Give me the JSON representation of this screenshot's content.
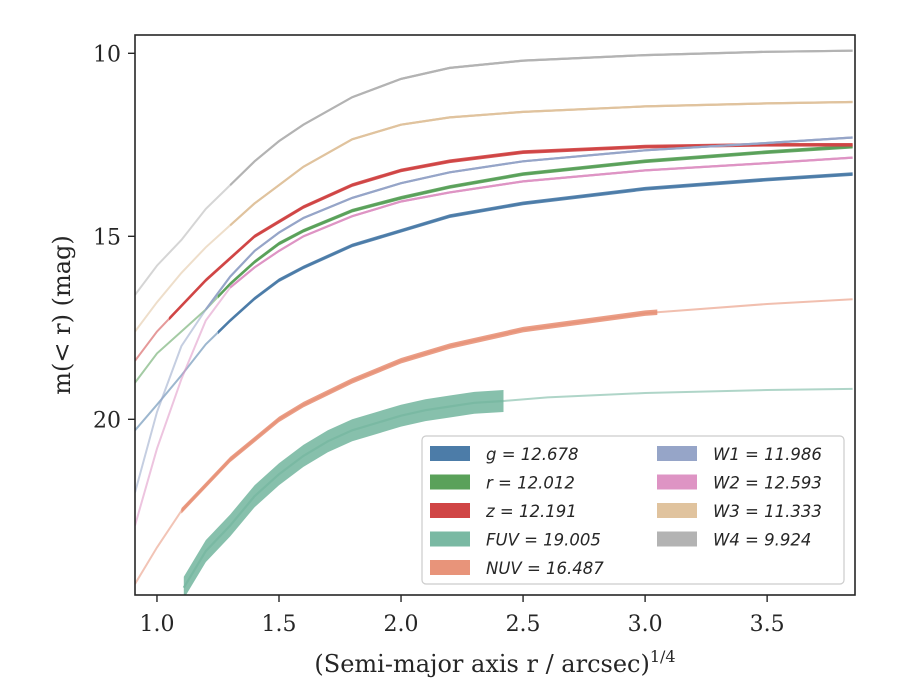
{
  "chart_data": {
    "type": "line",
    "xlabel": "(Semi-major axis r / arcsec)",
    "xlabel_exponent": "1/4",
    "ylabel": "m(< r) (mag)",
    "xlim": [
      0.91,
      3.86
    ],
    "ylim": [
      24.8,
      9.5
    ],
    "y_inverted": true,
    "x_ticks": [
      1.0,
      1.5,
      2.0,
      2.5,
      3.0,
      3.5
    ],
    "x_tick_labels": [
      "1.0",
      "1.5",
      "2.0",
      "2.5",
      "3.0",
      "3.5"
    ],
    "y_ticks": [
      10,
      15,
      20
    ],
    "y_tick_labels": [
      "10",
      "15",
      "20"
    ],
    "legend_position": "lower-right",
    "series": [
      {
        "key": "g",
        "name": "g = 12.678",
        "band": "g",
        "mag": "12.678",
        "color": "#4c7ca8",
        "band_width_mag": 0.1,
        "x": [
          0.91,
          1.0,
          1.1,
          1.2,
          1.3,
          1.4,
          1.5,
          1.6,
          1.8,
          2.0,
          2.2,
          2.5,
          3.0,
          3.5,
          3.85
        ],
        "y": [
          20.3,
          19.6,
          18.8,
          17.95,
          17.3,
          16.7,
          16.2,
          15.85,
          15.25,
          14.85,
          14.45,
          14.1,
          13.7,
          13.45,
          13.3
        ],
        "faint_x_max": 1.25
      },
      {
        "key": "r",
        "name": "r = 12.012",
        "band": "r",
        "mag": "12.012",
        "color": "#5aa15a",
        "band_width_mag": 0.1,
        "x": [
          0.91,
          1.0,
          1.1,
          1.2,
          1.3,
          1.4,
          1.5,
          1.6,
          1.8,
          2.0,
          2.2,
          2.5,
          3.0,
          3.5,
          3.85
        ],
        "y": [
          19.0,
          18.2,
          17.6,
          17.0,
          16.3,
          15.7,
          15.2,
          14.85,
          14.3,
          13.95,
          13.65,
          13.3,
          12.95,
          12.7,
          12.55
        ],
        "faint_x_max": 1.25
      },
      {
        "key": "z",
        "name": "z = 12.191",
        "band": "z",
        "mag": "12.191",
        "color": "#d04545",
        "band_width_mag": 0.1,
        "x": [
          0.91,
          1.0,
          1.1,
          1.2,
          1.3,
          1.4,
          1.5,
          1.6,
          1.8,
          2.0,
          2.2,
          2.5,
          3.0,
          3.5,
          3.85
        ],
        "y": [
          18.4,
          17.6,
          16.9,
          16.2,
          15.6,
          15.0,
          14.6,
          14.2,
          13.6,
          13.2,
          12.95,
          12.7,
          12.55,
          12.5,
          12.5
        ],
        "faint_x_max": 1.05
      },
      {
        "key": "FUV",
        "name": "FUV = 19.005",
        "band": "FUV",
        "mag": "19.005",
        "color": "#7ab9a3",
        "band_width_mag": 0.6,
        "x": [
          1.11,
          1.2,
          1.3,
          1.4,
          1.5,
          1.6,
          1.7,
          1.8,
          1.9,
          2.0,
          2.1,
          2.2,
          2.3,
          2.42,
          2.6,
          3.0,
          3.5,
          3.85
        ],
        "y": [
          24.6,
          23.6,
          22.9,
          22.1,
          21.5,
          21.0,
          20.6,
          20.3,
          20.1,
          19.9,
          19.75,
          19.65,
          19.55,
          19.5,
          19.4,
          19.28,
          19.2,
          19.17
        ],
        "faint_x_max": 0,
        "solid_x_max": 2.42
      },
      {
        "key": "NUV",
        "name": "NUV = 16.487",
        "band": "NUV",
        "mag": "16.487",
        "color": "#e8947a",
        "band_width_mag": 0.15,
        "x": [
          0.91,
          1.0,
          1.1,
          1.2,
          1.3,
          1.4,
          1.5,
          1.6,
          1.8,
          2.0,
          2.2,
          2.5,
          3.0,
          3.5,
          3.85
        ],
        "y": [
          24.5,
          23.5,
          22.5,
          21.8,
          21.1,
          20.55,
          20.0,
          19.6,
          18.95,
          18.4,
          18.0,
          17.55,
          17.1,
          16.85,
          16.72
        ],
        "faint_x_max": 1.1,
        "solid_x_max": 3.05
      },
      {
        "key": "W1",
        "name": "W1 = 11.986",
        "band": "W1",
        "mag": "11.986",
        "color": "#96a5c8",
        "band_width_mag": 0.06,
        "x": [
          0.91,
          1.0,
          1.1,
          1.2,
          1.3,
          1.4,
          1.5,
          1.6,
          1.8,
          2.0,
          2.2,
          2.5,
          3.0,
          3.5,
          3.85
        ],
        "y": [
          22.0,
          19.8,
          18.0,
          17.0,
          16.1,
          15.4,
          14.9,
          14.5,
          13.95,
          13.55,
          13.25,
          12.95,
          12.65,
          12.45,
          12.3
        ],
        "faint_x_max": 1.2
      },
      {
        "key": "W2",
        "name": "W2 = 12.593",
        "band": "W2",
        "mag": "12.593",
        "color": "#de94c4",
        "band_width_mag": 0.06,
        "x": [
          0.91,
          1.0,
          1.1,
          1.2,
          1.3,
          1.4,
          1.5,
          1.6,
          1.8,
          2.0,
          2.2,
          2.5,
          3.0,
          3.5,
          3.85
        ],
        "y": [
          22.9,
          20.8,
          18.9,
          17.3,
          16.4,
          15.85,
          15.4,
          15.0,
          14.45,
          14.05,
          13.8,
          13.5,
          13.2,
          13.0,
          12.85
        ],
        "faint_x_max": 1.3
      },
      {
        "key": "W3",
        "name": "W3 = 11.333",
        "band": "W3",
        "mag": "11.333",
        "color": "#e0c39e",
        "band_width_mag": 0.06,
        "x": [
          0.91,
          1.0,
          1.1,
          1.2,
          1.3,
          1.4,
          1.5,
          1.6,
          1.8,
          2.0,
          2.2,
          2.5,
          3.0,
          3.5,
          3.85
        ],
        "y": [
          17.6,
          16.8,
          16.0,
          15.3,
          14.7,
          14.1,
          13.6,
          13.1,
          12.35,
          11.95,
          11.75,
          11.6,
          11.45,
          11.37,
          11.33
        ],
        "faint_x_max": 1.3
      },
      {
        "key": "W4",
        "name": "W4 = 9.924",
        "band": "W4",
        "mag": "9.924",
        "color": "#b3b3b3",
        "band_width_mag": 0.06,
        "x": [
          0.91,
          1.0,
          1.1,
          1.2,
          1.3,
          1.4,
          1.5,
          1.6,
          1.8,
          2.0,
          2.2,
          2.5,
          3.0,
          3.5,
          3.85
        ],
        "y": [
          16.6,
          15.8,
          15.1,
          14.25,
          13.6,
          12.95,
          12.4,
          11.95,
          11.2,
          10.7,
          10.4,
          10.2,
          10.05,
          9.96,
          9.93
        ],
        "faint_x_max": 1.3
      }
    ],
    "legend_columns": [
      [
        "g",
        "r",
        "z",
        "FUV",
        "NUV"
      ],
      [
        "W1",
        "W2",
        "W3",
        "W4"
      ]
    ]
  }
}
